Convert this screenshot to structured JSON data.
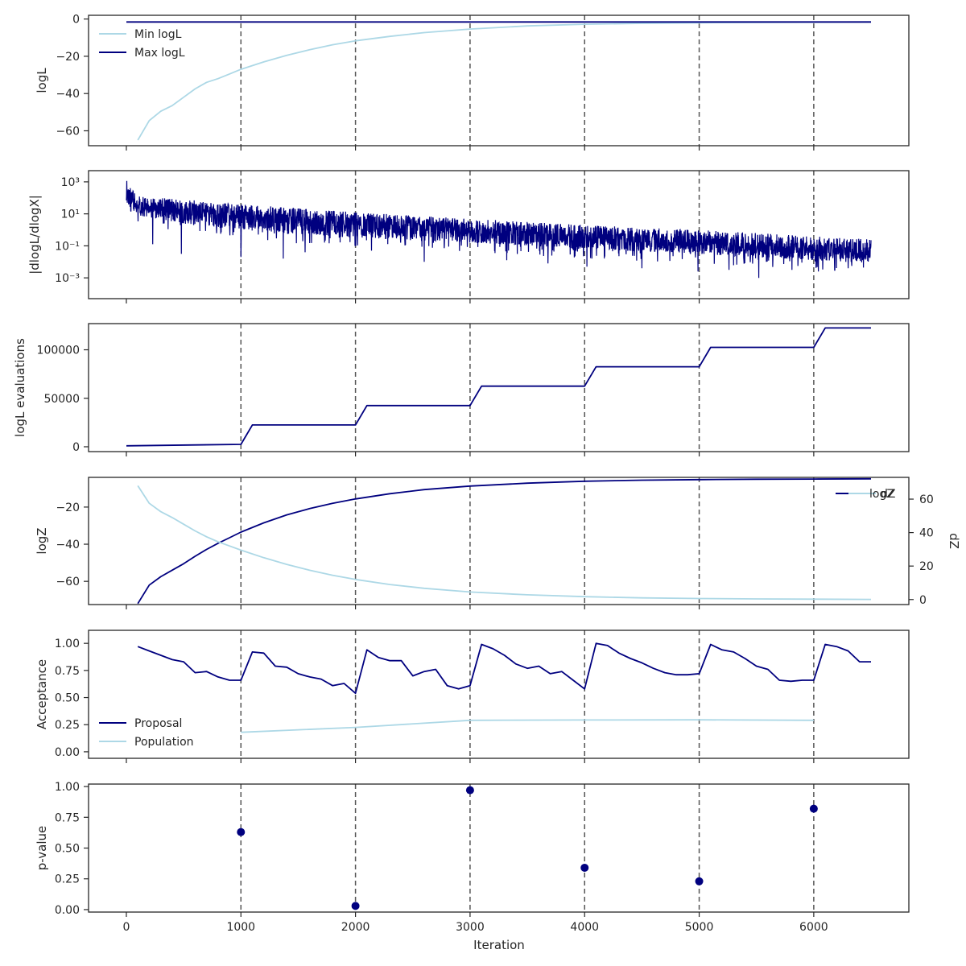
{
  "colors": {
    "dark": "#00007f",
    "light": "#add8e6",
    "vline": "#555555",
    "frame": "#262626"
  },
  "x_axis": {
    "label": "Iteration",
    "range": [
      -330,
      6830
    ],
    "ticks": [
      0,
      1000,
      2000,
      3000,
      4000,
      5000,
      6000
    ],
    "tick_labels": [
      "0",
      "1000",
      "2000",
      "3000",
      "4000",
      "5000",
      "6000"
    ]
  },
  "vlines": [
    1000,
    2000,
    3000,
    4000,
    5000,
    6000
  ],
  "chart_data": [
    {
      "type": "line",
      "ylabel": "logL",
      "ylim": [
        -68,
        2
      ],
      "yticks": [
        0,
        -20,
        -40,
        -60
      ],
      "ytick_labels": [
        "0",
        "−20",
        "−40",
        "−60"
      ],
      "legend": "top-left",
      "series": [
        {
          "name": "Min logL",
          "color_key": "light",
          "x": [
            100,
            200,
            300,
            400,
            500,
            600,
            700,
            800,
            900,
            1000,
            1200,
            1400,
            1600,
            1800,
            2000,
            2300,
            2600,
            3000,
            3500,
            4000,
            4500,
            5000,
            5500,
            6000,
            6500
          ],
          "y": [
            -65,
            -54.5,
            -49.5,
            -46.5,
            -42,
            -37.5,
            -34,
            -32,
            -29.5,
            -27,
            -23,
            -19.5,
            -16.5,
            -13.8,
            -11.7,
            -9.3,
            -7.3,
            -5.4,
            -3.7,
            -2.8,
            -2.3,
            -2.0,
            -1.8,
            -1.7,
            -1.6
          ]
        },
        {
          "name": "Max logL",
          "color_key": "dark",
          "x": [
            0,
            1000,
            2000,
            3000,
            4000,
            5000,
            6000,
            6500
          ],
          "y": [
            -1.6,
            -1.6,
            -1.6,
            -1.6,
            -1.6,
            -1.6,
            -1.6,
            -1.6
          ]
        }
      ]
    },
    {
      "type": "line",
      "ylabel": "|dlogL/dlogX|",
      "yscale": "log",
      "ylim_log10": [
        -4.3,
        3.7
      ],
      "yticks_log10": [
        3,
        1,
        -1,
        -3
      ],
      "ytick_labels": [
        "10³",
        "10¹",
        "10⁻¹",
        "10⁻³"
      ],
      "series": [
        {
          "color_key": "dark",
          "trend_x": [
            0,
            100,
            500,
            1000,
            2000,
            3000,
            4000,
            5000,
            6000,
            6500
          ],
          "trend_log10_upper": [
            3.2,
            2.1,
            1.9,
            1.6,
            1.1,
            0.7,
            0.3,
            0.0,
            -0.4,
            -0.6
          ],
          "trend_log10_center": [
            2.4,
            1.5,
            1.3,
            1.0,
            0.5,
            0.1,
            -0.4,
            -0.8,
            -1.1,
            -1.3
          ],
          "trend_log10_lower": [
            1.6,
            0.9,
            0.4,
            0.0,
            -0.5,
            -0.8,
            -1.2,
            -1.5,
            -1.9,
            -2.1
          ],
          "dips": [
            {
              "x": 230,
              "log10": -0.9
            },
            {
              "x": 480,
              "log10": -1.5
            },
            {
              "x": 1000,
              "log10": -1.7
            },
            {
              "x": 1370,
              "log10": -1.8
            },
            {
              "x": 1560,
              "log10": -1.4
            },
            {
              "x": 2140,
              "log10": -1.3
            },
            {
              "x": 2600,
              "log10": -2.0
            },
            {
              "x": 3320,
              "log10": -1.9
            },
            {
              "x": 3680,
              "log10": -2.1
            },
            {
              "x": 4020,
              "log10": -2.3
            },
            {
              "x": 4500,
              "log10": -2.4
            },
            {
              "x": 4990,
              "log10": -2.6
            },
            {
              "x": 5260,
              "log10": -2.5
            },
            {
              "x": 5520,
              "log10": -3.0
            },
            {
              "x": 5810,
              "log10": -2.5
            },
            {
              "x": 6040,
              "log10": -2.6
            },
            {
              "x": 6300,
              "log10": -2.4
            }
          ]
        }
      ]
    },
    {
      "type": "line",
      "ylabel": "logL evaluations",
      "ylim": [
        -5000,
        127000
      ],
      "yticks": [
        0,
        50000,
        100000
      ],
      "ytick_labels": [
        "0",
        "50000",
        "100000"
      ],
      "series": [
        {
          "color_key": "dark",
          "x": [
            0,
            1000,
            1100,
            2000,
            2100,
            3000,
            3100,
            4000,
            4100,
            5000,
            5100,
            6000,
            6100,
            6500
          ],
          "y": [
            1000,
            2500,
            22500,
            22500,
            42500,
            42500,
            62500,
            62500,
            82500,
            82500,
            102500,
            102500,
            122500,
            122500
          ]
        }
      ]
    },
    {
      "type": "line",
      "ylabel": "logZ",
      "ylim": [
        -72.5,
        -4
      ],
      "yticks": [
        -20,
        -40,
        -60
      ],
      "ytick_labels": [
        "−20",
        "−40",
        "−60"
      ],
      "y2label": "dZ",
      "y2lim": [
        -3,
        73
      ],
      "y2ticks": [
        0,
        20,
        40,
        60
      ],
      "y2tick_labels": [
        "0",
        "20",
        "40",
        "60"
      ],
      "legend": "top-right",
      "series": [
        {
          "name": "logZ",
          "color_key": "dark",
          "axis": "left",
          "x": [
            100,
            200,
            300,
            400,
            500,
            600,
            700,
            800,
            900,
            1000,
            1200,
            1400,
            1600,
            1800,
            2000,
            2300,
            2600,
            3000,
            3500,
            4000,
            4500,
            5000,
            5500,
            6000,
            6500
          ],
          "y": [
            -72,
            -62,
            -57.5,
            -54,
            -50.5,
            -46.5,
            -42.8,
            -39.5,
            -36.5,
            -33.5,
            -28.5,
            -24.2,
            -20.8,
            -18,
            -15.6,
            -12.8,
            -10.6,
            -8.7,
            -7.1,
            -6.1,
            -5.5,
            -5.2,
            -5.0,
            -4.9,
            -4.8
          ]
        },
        {
          "name": "dZ",
          "color_key": "light",
          "axis": "right",
          "x": [
            100,
            200,
            300,
            400,
            500,
            600,
            700,
            800,
            900,
            1000,
            1200,
            1400,
            1600,
            1800,
            2000,
            2300,
            2600,
            3000,
            3500,
            4000,
            4500,
            5000,
            5500,
            6000,
            6500
          ],
          "y": [
            68,
            57.5,
            52.5,
            49,
            45,
            41,
            37.5,
            34.5,
            32,
            29.5,
            25,
            21,
            17.5,
            14.5,
            12,
            9,
            6.7,
            4.5,
            2.8,
            1.7,
            1.0,
            0.6,
            0.35,
            0.2,
            0.1
          ]
        }
      ]
    },
    {
      "type": "line",
      "ylabel": "Acceptance",
      "ylim": [
        -0.06,
        1.12
      ],
      "yticks": [
        0,
        0.25,
        0.5,
        0.75,
        1.0
      ],
      "ytick_labels": [
        "0.00",
        "0.25",
        "0.50",
        "0.75",
        "1.00"
      ],
      "legend": "bottom-left",
      "series": [
        {
          "name": "Proposal",
          "color_key": "dark",
          "x": [
            100,
            200,
            300,
            400,
            500,
            600,
            700,
            800,
            900,
            1000,
            1100,
            1200,
            1300,
            1400,
            1500,
            1600,
            1700,
            1800,
            1900,
            2000,
            2100,
            2200,
            2300,
            2400,
            2500,
            2600,
            2700,
            2800,
            2900,
            3000,
            3100,
            3200,
            3300,
            3400,
            3500,
            3600,
            3700,
            3800,
            3900,
            4000,
            4100,
            4200,
            4300,
            4400,
            4500,
            4600,
            4700,
            4800,
            4900,
            5000,
            5100,
            5200,
            5300,
            5400,
            5500,
            5600,
            5700,
            5800,
            5900,
            6000,
            6100,
            6200,
            6300,
            6400,
            6500
          ],
          "y": [
            0.97,
            0.93,
            0.89,
            0.85,
            0.83,
            0.73,
            0.74,
            0.69,
            0.66,
            0.66,
            0.92,
            0.91,
            0.79,
            0.78,
            0.72,
            0.69,
            0.67,
            0.61,
            0.63,
            0.54,
            0.94,
            0.87,
            0.84,
            0.84,
            0.7,
            0.74,
            0.76,
            0.61,
            0.58,
            0.61,
            0.99,
            0.95,
            0.89,
            0.81,
            0.77,
            0.79,
            0.72,
            0.74,
            0.66,
            0.58,
            1.0,
            0.98,
            0.91,
            0.86,
            0.82,
            0.77,
            0.73,
            0.71,
            0.71,
            0.72,
            0.99,
            0.94,
            0.92,
            0.86,
            0.79,
            0.76,
            0.66,
            0.65,
            0.66,
            0.66,
            0.99,
            0.97,
            0.93,
            0.83,
            0.83
          ]
        },
        {
          "name": "Population",
          "color_key": "light",
          "x": [
            1000,
            2000,
            3000,
            4000,
            5000,
            6000
          ],
          "y": [
            0.18,
            0.225,
            0.29,
            0.293,
            0.295,
            0.29
          ]
        }
      ]
    },
    {
      "type": "scatter",
      "ylabel": "p-value",
      "xlabel": "Iteration",
      "ylim": [
        -0.02,
        1.02
      ],
      "yticks": [
        0,
        0.25,
        0.5,
        0.75,
        1.0
      ],
      "ytick_labels": [
        "0.00",
        "0.25",
        "0.50",
        "0.75",
        "1.00"
      ],
      "series": [
        {
          "color_key": "dark",
          "x": [
            1000,
            2000,
            3000,
            4000,
            5000,
            6000
          ],
          "y": [
            0.63,
            0.03,
            0.97,
            0.34,
            0.23,
            0.82
          ]
        }
      ]
    }
  ]
}
